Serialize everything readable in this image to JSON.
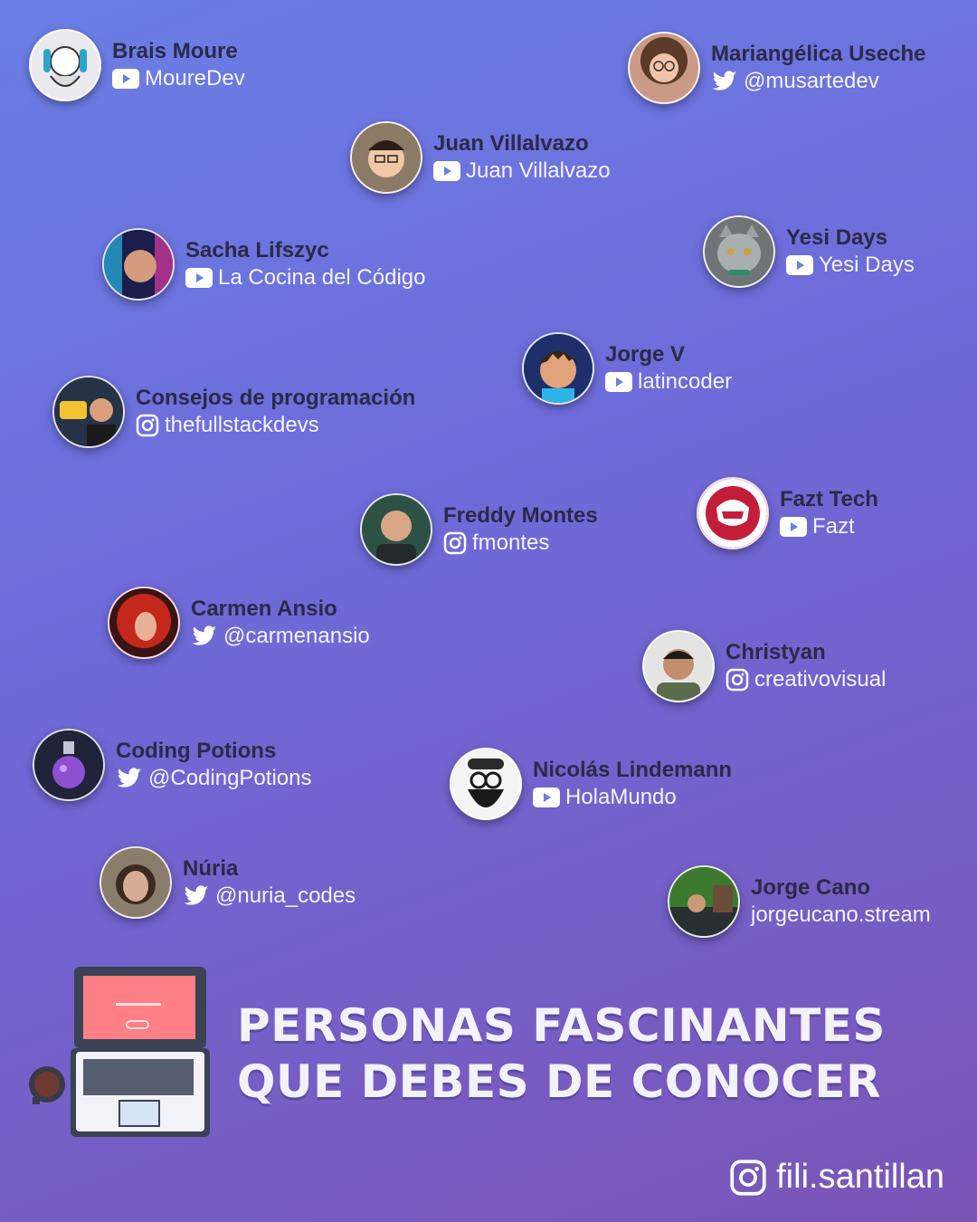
{
  "people": [
    {
      "name": "Brais Moure",
      "platform": "youtube",
      "handle": "MoureDev",
      "avatar": "avatar-sketch-beard",
      "color": "#e9e9ee"
    },
    {
      "name": "Mariangélica Useche",
      "platform": "twitter",
      "handle": "@musartedev",
      "avatar": "avatar-woman-glasses",
      "color": "#c99a86"
    },
    {
      "name": "Juan Villalvazo",
      "platform": "youtube",
      "handle": "Juan Villalvazo",
      "avatar": "avatar-man-glasses",
      "color": "#b98e74"
    },
    {
      "name": "Sacha Lifszyc",
      "platform": "youtube",
      "handle": "La Cocina del Código",
      "avatar": "avatar-neon-man",
      "color": "#3a3f8a"
    },
    {
      "name": "Yesi Days",
      "platform": "youtube",
      "handle": "Yesi Days",
      "avatar": "avatar-grey-cat",
      "color": "#8d9396"
    },
    {
      "name": "Jorge V",
      "platform": "youtube",
      "handle": "latincoder",
      "avatar": "avatar-cartoon-man",
      "color": "#2f6fd1"
    },
    {
      "name": "Consejos de programación",
      "platform": "instagram",
      "handle": "thefullstackdevs",
      "avatar": "avatar-code-man",
      "color": "#2d3a52"
    },
    {
      "name": "Freddy Montes",
      "platform": "instagram",
      "handle": "fmontes",
      "avatar": "avatar-bald-man",
      "color": "#3f6b5a"
    },
    {
      "name": "Fazt Tech",
      "platform": "youtube",
      "handle": "Fazt",
      "avatar": "avatar-fazt-logo",
      "color": "#c41d3a"
    },
    {
      "name": "Carmen Ansio",
      "platform": "twitter",
      "handle": "@carmenansio",
      "avatar": "avatar-red-hair",
      "color": "#b4231d"
    },
    {
      "name": "Christyan",
      "platform": "instagram",
      "handle": "creativovisual",
      "avatar": "avatar-man-short-hair",
      "color": "#d9d9d9"
    },
    {
      "name": "Coding Potions",
      "platform": "twitter",
      "handle": "@CodingPotions",
      "avatar": "avatar-potion",
      "color": "#262a3a"
    },
    {
      "name": "Nicolás Lindemann",
      "platform": "youtube",
      "handle": "HolaMundo",
      "avatar": "avatar-beard-glasses",
      "color": "#f4f4f4"
    },
    {
      "name": "Núria",
      "platform": "twitter",
      "handle": "@nuria_codes",
      "avatar": "avatar-woman-dark-hair",
      "color": "#8a7d6c"
    },
    {
      "name": "Jorge Cano",
      "platform": "none",
      "handle": "jorgeucano.stream",
      "avatar": "avatar-streamer",
      "color": "#4e8f3a"
    }
  ],
  "title": {
    "line1": "PERSONAS FASCINANTES",
    "line2": "QUE DEBES DE CONOCER"
  },
  "footer": {
    "handle": "fili.santillan",
    "icon": "instagram-icon"
  },
  "colors": {
    "youtube": "#ffffff",
    "twitter": "#ffffff",
    "instagram": "#ffffff",
    "name_text": "#2b2a47",
    "laptop_screen": "#ff7f86"
  }
}
